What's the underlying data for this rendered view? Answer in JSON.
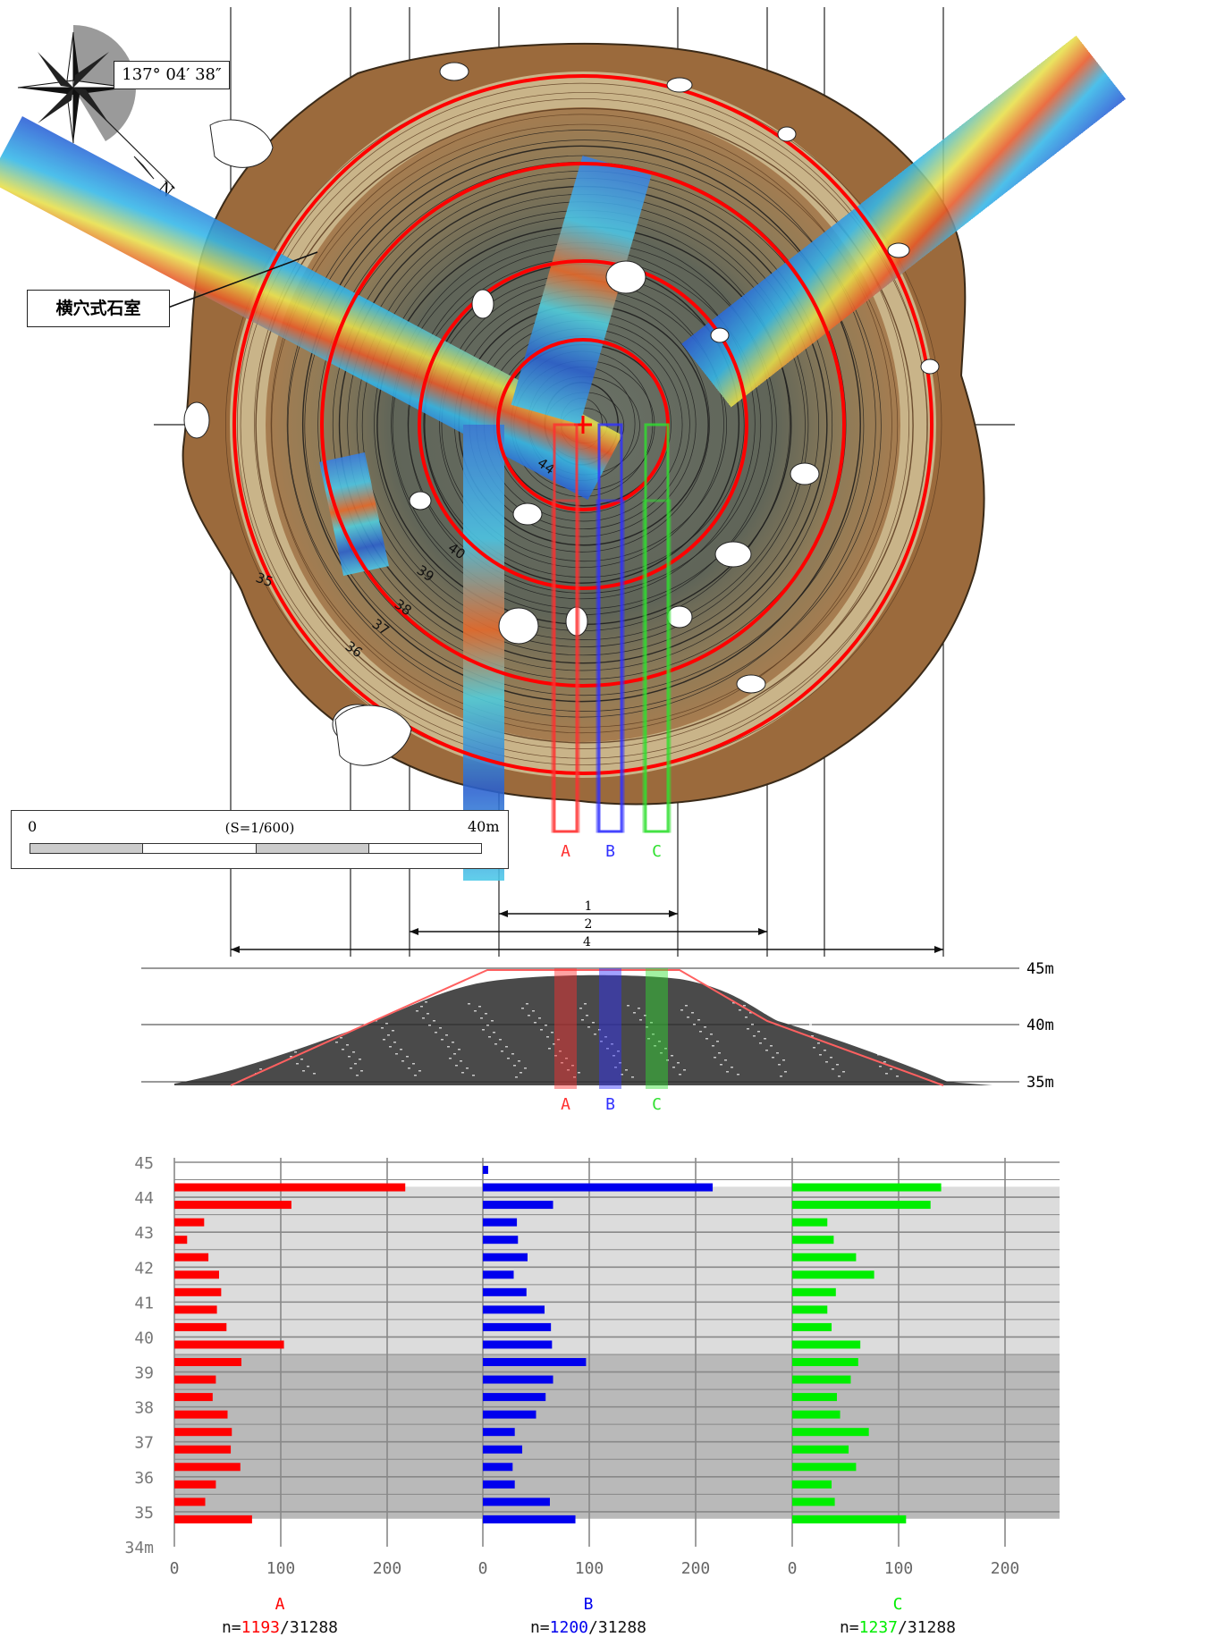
{
  "map": {
    "coordinate_label": "137° 04′ 38″",
    "north_label": "N",
    "chamber_label": "横穴式石室",
    "contour_labels": [
      "44",
      "40",
      "39",
      "38",
      "37",
      "36",
      "35"
    ],
    "trench_labels": [
      "A",
      "B",
      "C"
    ],
    "trench_colors": [
      "#ff3030",
      "#3030ff",
      "#30e030"
    ],
    "colors": {
      "mound": "#9b6a3c",
      "ring": "#ff0000",
      "contour": "#1a1a1a",
      "terrace": "#cdb98d"
    }
  },
  "scale_bar": {
    "start_label": "0",
    "end_label": "40m",
    "ratio_label": "(S=1/600)"
  },
  "spans": [
    {
      "label": "1"
    },
    {
      "label": "2"
    },
    {
      "label": "4"
    }
  ],
  "profile": {
    "elevation_labels": [
      "45m",
      "40m",
      "35m"
    ],
    "trench_labels": [
      "A",
      "B",
      "C"
    ]
  },
  "chart_data": {
    "type": "bar",
    "orientation": "horizontal",
    "y_tick_labels": [
      "45",
      "44",
      "43",
      "42",
      "41",
      "40",
      "39",
      "38",
      "37",
      "36",
      "35",
      "34m"
    ],
    "ylim": [
      34,
      45
    ],
    "x_tick_labels": [
      "0",
      "100",
      "200"
    ],
    "xlim": [
      0,
      250
    ],
    "elevations": [
      45.0,
      44.5,
      44.0,
      43.5,
      43.0,
      42.5,
      42.0,
      41.5,
      41.0,
      40.5,
      40.0,
      39.5,
      39.0,
      38.5,
      38.0,
      37.5,
      37.0,
      36.5,
      36.0,
      35.5,
      35.0
    ],
    "series": [
      {
        "name": "A",
        "color": "#ff0000",
        "count_label": "1193",
        "total_label": "/31288",
        "prefix_label": "n=",
        "values": [
          0,
          217,
          110,
          28,
          12,
          32,
          42,
          44,
          40,
          49,
          103,
          63,
          39,
          36,
          50,
          54,
          53,
          62,
          39,
          29,
          73
        ]
      },
      {
        "name": "B",
        "color": "#0000ee",
        "count_label": "1200",
        "total_label": "/31288",
        "prefix_label": "n=",
        "values": [
          5,
          216,
          66,
          32,
          33,
          42,
          29,
          41,
          58,
          64,
          65,
          97,
          66,
          59,
          50,
          30,
          37,
          28,
          30,
          63,
          87
        ]
      },
      {
        "name": "C",
        "color": "#00ee00",
        "count_label": "1237",
        "total_label": "/31288",
        "prefix_label": "n=",
        "values": [
          0,
          140,
          130,
          33,
          39,
          60,
          77,
          41,
          33,
          37,
          64,
          62,
          55,
          42,
          45,
          72,
          53,
          60,
          37,
          40,
          107
        ]
      }
    ],
    "bands": [
      {
        "from": 39.5,
        "to": 44.3,
        "color": "#dcdcdc"
      },
      {
        "from": 34.8,
        "to": 39.5,
        "color": "#b9b9b9"
      }
    ]
  }
}
